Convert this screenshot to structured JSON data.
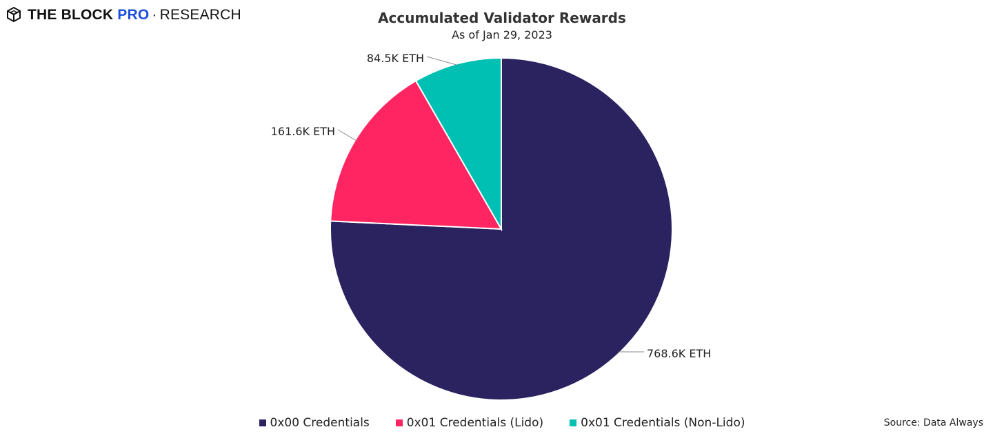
{
  "brand": {
    "name": "THE BLOCK",
    "pro": "PRO",
    "separator": "·",
    "section": "RESEARCH",
    "logo_icon": "cube-logo-icon",
    "pro_color": "#1d4fd8"
  },
  "source_text": "Source: Data Always",
  "chart_data": {
    "type": "pie",
    "title": "Accumulated Validator Rewards",
    "subtitle": "As of Jan 29, 2023",
    "categories": [
      "0x00 Credentials",
      "0x01 Credentials (Lido)",
      "0x01 Credentials (Non-Lido)"
    ],
    "values": [
      768.6,
      161.6,
      84.5
    ],
    "data_labels": [
      "768.6K ETH",
      "161.6K ETH",
      "84.5K ETH"
    ],
    "unit": "K ETH",
    "colors": [
      "#2b2260",
      "#ff2562",
      "#00bfb3"
    ],
    "start_angle": "12 o'clock",
    "direction": "clockwise",
    "legend_position": "bottom"
  }
}
